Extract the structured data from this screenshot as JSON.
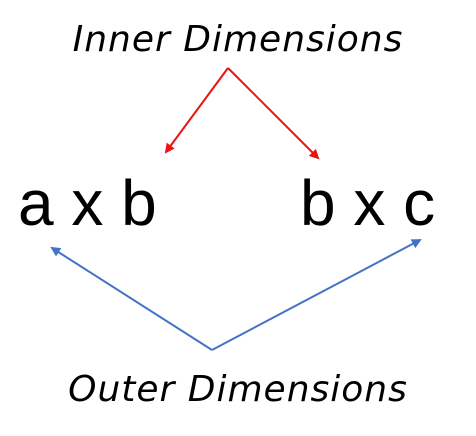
{
  "labels": {
    "inner": "Inner Dimensions",
    "outer": "Outer Dimensions"
  },
  "dimensions": {
    "left": "a x b",
    "right": "b x c"
  },
  "colors": {
    "inner_arrows": "#ee1111",
    "outer_arrows": "#4472c4",
    "text": "#000000"
  }
}
